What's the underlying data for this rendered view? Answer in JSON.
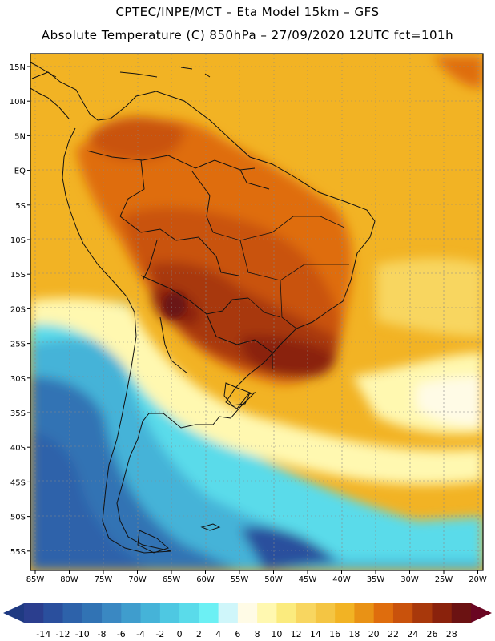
{
  "header": {
    "line1": "CPTEC/INPE/MCT –  Eta Model 15km – GFS",
    "line2": "Absolute Temperature (C) 850hPa – 27/09/2020 12UTC fct=101h"
  },
  "map": {
    "lat_labels": [
      "15N",
      "10N",
      "5N",
      "EQ",
      "5S",
      "10S",
      "15S",
      "20S",
      "25S",
      "30S",
      "35S",
      "40S",
      "45S",
      "50S",
      "55S"
    ],
    "lon_labels": [
      "85W",
      "80W",
      "75W",
      "70W",
      "65W",
      "60W",
      "55W",
      "50W",
      "45W",
      "40W",
      "35W",
      "30W",
      "25W",
      "20W"
    ]
  },
  "colorbar": {
    "labels": [
      "-14",
      "-12",
      "-10",
      "-8",
      "-6",
      "-4",
      "-2",
      "0",
      "2",
      "4",
      "6",
      "8",
      "10",
      "12",
      "14",
      "16",
      "18",
      "20",
      "22",
      "24",
      "26",
      "28"
    ],
    "colors": [
      "#2b3e8e",
      "#2a4f9d",
      "#2d62aa",
      "#3173b4",
      "#3a88c2",
      "#3f9dcd",
      "#45b3d8",
      "#4ec8e2",
      "#5adbea",
      "#6cf0f4",
      "#cff6fa",
      "#fffbe6",
      "#fff8b0",
      "#fbeb7e",
      "#f8d660",
      "#f4c543",
      "#f2b324",
      "#e99215",
      "#df6d0d",
      "#c9520c",
      "#a8380b",
      "#8a220c",
      "#6b1212"
    ],
    "arrow_low": "#1f3a82",
    "arrow_high": "#6a0622"
  }
}
